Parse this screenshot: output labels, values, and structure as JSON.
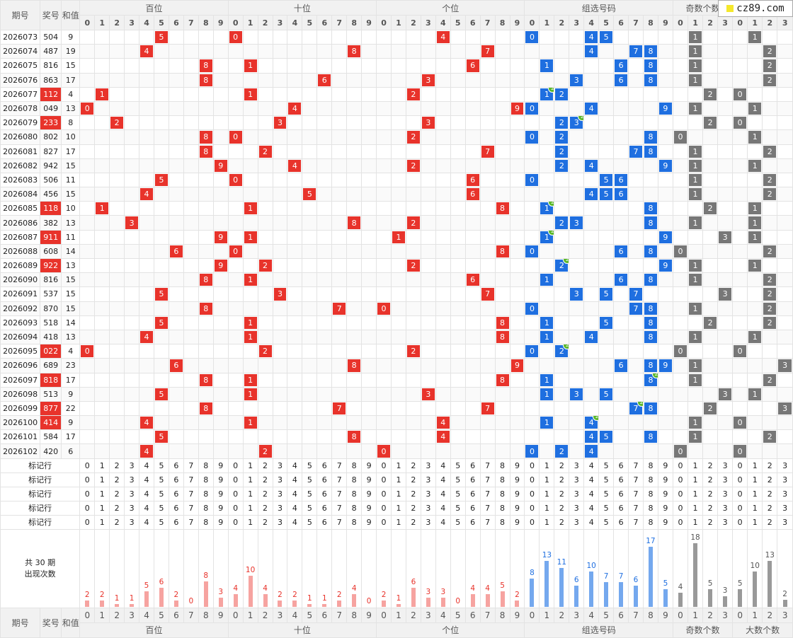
{
  "header": {
    "issue": "期号",
    "number": "奖号",
    "sum": "和值",
    "groups": [
      "百位",
      "十位",
      "个位",
      "组选号码",
      "奇数个数",
      "大数个数"
    ],
    "digits": [
      "0",
      "1",
      "2",
      "3",
      "4",
      "5",
      "6",
      "7",
      "8",
      "9"
    ],
    "counts": [
      "0",
      "1",
      "2",
      "3"
    ]
  },
  "logo": {
    "text": "cz89.com"
  },
  "rows": [
    {
      "issue": "2026073",
      "num": "504",
      "sum": "9",
      "hot": false,
      "combo": [
        0,
        4,
        5
      ],
      "dup": null,
      "odd": 1,
      "big": 1
    },
    {
      "issue": "2026074",
      "num": "487",
      "sum": "19",
      "hot": false,
      "combo": [
        4,
        7,
        8
      ],
      "dup": null,
      "odd": 1,
      "big": 2
    },
    {
      "issue": "2026075",
      "num": "816",
      "sum": "15",
      "hot": false,
      "combo": [
        1,
        6,
        8
      ],
      "dup": null,
      "odd": 1,
      "big": 2
    },
    {
      "issue": "2026076",
      "num": "863",
      "sum": "17",
      "hot": false,
      "combo": [
        3,
        6,
        8
      ],
      "dup": null,
      "odd": 1,
      "big": 2
    },
    {
      "issue": "2026077",
      "num": "112",
      "sum": "4",
      "hot": true,
      "combo": [
        1,
        2
      ],
      "dup": 1,
      "odd": 2,
      "big": 0
    },
    {
      "issue": "2026078",
      "num": "049",
      "sum": "13",
      "hot": false,
      "combo": [
        0,
        4,
        9
      ],
      "dup": null,
      "odd": 1,
      "big": 1
    },
    {
      "issue": "2026079",
      "num": "233",
      "sum": "8",
      "hot": true,
      "combo": [
        2,
        3
      ],
      "dup": 3,
      "odd": 2,
      "big": 0
    },
    {
      "issue": "2026080",
      "num": "802",
      "sum": "10",
      "hot": false,
      "combo": [
        0,
        2,
        8
      ],
      "dup": null,
      "odd": 0,
      "big": 1
    },
    {
      "issue": "2026081",
      "num": "827",
      "sum": "17",
      "hot": false,
      "combo": [
        2,
        7,
        8
      ],
      "dup": null,
      "odd": 1,
      "big": 2
    },
    {
      "issue": "2026082",
      "num": "942",
      "sum": "15",
      "hot": false,
      "combo": [
        2,
        4,
        9
      ],
      "dup": null,
      "odd": 1,
      "big": 1
    },
    {
      "issue": "2026083",
      "num": "506",
      "sum": "11",
      "hot": false,
      "combo": [
        0,
        5,
        6
      ],
      "dup": null,
      "odd": 1,
      "big": 2
    },
    {
      "issue": "2026084",
      "num": "456",
      "sum": "15",
      "hot": false,
      "combo": [
        4,
        5,
        6
      ],
      "dup": null,
      "odd": 1,
      "big": 2
    },
    {
      "issue": "2026085",
      "num": "118",
      "sum": "10",
      "hot": true,
      "combo": [
        1,
        8
      ],
      "dup": 1,
      "odd": 2,
      "big": 1
    },
    {
      "issue": "2026086",
      "num": "382",
      "sum": "13",
      "hot": false,
      "combo": [
        2,
        3,
        8
      ],
      "dup": null,
      "odd": 1,
      "big": 1
    },
    {
      "issue": "2026087",
      "num": "911",
      "sum": "11",
      "hot": true,
      "combo": [
        1,
        9
      ],
      "dup": 1,
      "odd": 3,
      "big": 1
    },
    {
      "issue": "2026088",
      "num": "608",
      "sum": "14",
      "hot": false,
      "combo": [
        0,
        6,
        8
      ],
      "dup": null,
      "odd": 0,
      "big": 2
    },
    {
      "issue": "2026089",
      "num": "922",
      "sum": "13",
      "hot": true,
      "combo": [
        2,
        9
      ],
      "dup": 2,
      "odd": 1,
      "big": 1
    },
    {
      "issue": "2026090",
      "num": "816",
      "sum": "15",
      "hot": false,
      "combo": [
        1,
        6,
        8
      ],
      "dup": null,
      "odd": 1,
      "big": 2
    },
    {
      "issue": "2026091",
      "num": "537",
      "sum": "15",
      "hot": false,
      "combo": [
        3,
        5,
        7
      ],
      "dup": null,
      "odd": 3,
      "big": 2
    },
    {
      "issue": "2026092",
      "num": "870",
      "sum": "15",
      "hot": false,
      "combo": [
        0,
        7,
        8
      ],
      "dup": null,
      "odd": 1,
      "big": 2
    },
    {
      "issue": "2026093",
      "num": "518",
      "sum": "14",
      "hot": false,
      "combo": [
        1,
        5,
        8
      ],
      "dup": null,
      "odd": 2,
      "big": 2
    },
    {
      "issue": "2026094",
      "num": "418",
      "sum": "13",
      "hot": false,
      "combo": [
        1,
        4,
        8
      ],
      "dup": null,
      "odd": 1,
      "big": 1
    },
    {
      "issue": "2026095",
      "num": "022",
      "sum": "4",
      "hot": true,
      "combo": [
        0,
        2
      ],
      "dup": 2,
      "odd": 0,
      "big": 0
    },
    {
      "issue": "2026096",
      "num": "689",
      "sum": "23",
      "hot": false,
      "combo": [
        6,
        8,
        9
      ],
      "dup": null,
      "odd": 1,
      "big": 3
    },
    {
      "issue": "2026097",
      "num": "818",
      "sum": "17",
      "hot": true,
      "combo": [
        1,
        8
      ],
      "dup": 8,
      "odd": 1,
      "big": 2
    },
    {
      "issue": "2026098",
      "num": "513",
      "sum": "9",
      "hot": false,
      "combo": [
        1,
        3,
        5
      ],
      "dup": null,
      "odd": 3,
      "big": 1
    },
    {
      "issue": "2026099",
      "num": "877",
      "sum": "22",
      "hot": true,
      "combo": [
        7,
        8
      ],
      "dup": 7,
      "odd": 2,
      "big": 3
    },
    {
      "issue": "2026100",
      "num": "414",
      "sum": "9",
      "hot": true,
      "combo": [
        1,
        4
      ],
      "dup": 4,
      "odd": 1,
      "big": 0
    },
    {
      "issue": "2026101",
      "num": "584",
      "sum": "17",
      "hot": false,
      "combo": [
        4,
        5,
        8
      ],
      "dup": null,
      "odd": 1,
      "big": 2
    },
    {
      "issue": "2026102",
      "num": "420",
      "sum": "6",
      "hot": false,
      "combo": [
        0,
        2,
        4
      ],
      "dup": null,
      "odd": 0,
      "big": 0
    }
  ],
  "mark_label": "标记行",
  "mark_rows": 5,
  "summary": {
    "line1": "共 30 期",
    "line2": "出现次数"
  },
  "stats": {
    "hundreds": [
      2,
      2,
      1,
      1,
      5,
      6,
      2,
      0,
      8,
      3
    ],
    "tens": [
      4,
      10,
      4,
      2,
      2,
      1,
      1,
      2,
      4,
      0
    ],
    "units": [
      2,
      1,
      6,
      3,
      3,
      0,
      4,
      4,
      5,
      2
    ],
    "combo": [
      8,
      13,
      11,
      6,
      10,
      7,
      7,
      6,
      17,
      5
    ],
    "odd": [
      4,
      18,
      5,
      3
    ],
    "big": [
      5,
      10,
      13,
      2
    ]
  },
  "colors": {
    "red": "#e8332b",
    "blue": "#1f6fe0",
    "gray": "#777777",
    "dup": "#5bb82a"
  }
}
